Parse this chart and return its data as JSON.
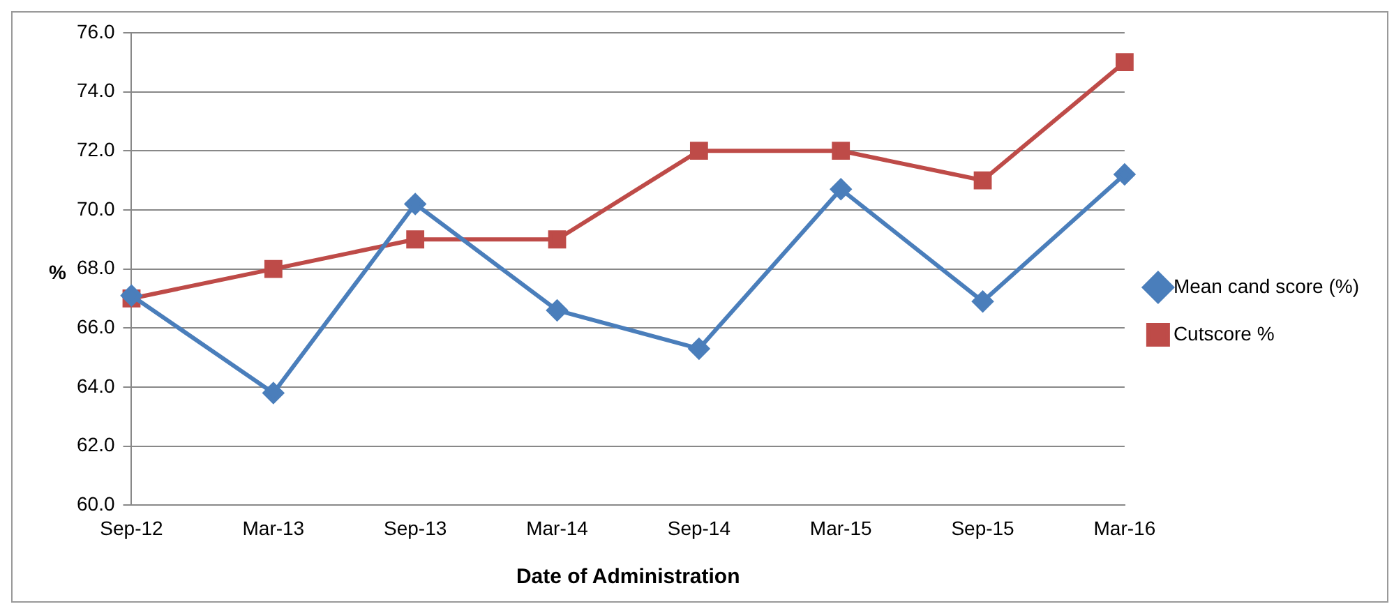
{
  "chart_data": {
    "type": "line",
    "xlabel": "Date of Administration",
    "ylabel": "%",
    "categories": [
      "Sep-12",
      "Mar-13",
      "Sep-13",
      "Mar-14",
      "Sep-14",
      "Mar-15",
      "Sep-15",
      "Mar-16"
    ],
    "series": [
      {
        "name": "Mean cand score (%)",
        "color": "#4a7ebb",
        "marker": "diamond",
        "values": [
          67.1,
          63.8,
          70.2,
          66.6,
          65.3,
          70.7,
          66.9,
          71.2
        ]
      },
      {
        "name": "Cutscore %",
        "color": "#be4b48",
        "marker": "square",
        "values": [
          67,
          68,
          69,
          69,
          72,
          72,
          71,
          75
        ]
      }
    ],
    "ylim": [
      60,
      76
    ],
    "yticks": [
      {
        "value": 60,
        "label": "60.0"
      },
      {
        "value": 62,
        "label": "62.0"
      },
      {
        "value": 64,
        "label": "64.0"
      },
      {
        "value": 66,
        "label": "66.0"
      },
      {
        "value": 68,
        "label": "68.0"
      },
      {
        "value": 70,
        "label": "70.0"
      },
      {
        "value": 72,
        "label": "72.0"
      },
      {
        "value": 74,
        "label": "74.0"
      },
      {
        "value": 76,
        "label": "76.0"
      }
    ],
    "grid": "y",
    "legend": "right"
  }
}
